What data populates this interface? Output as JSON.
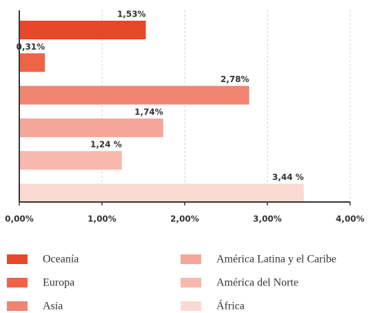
{
  "chart_data": {
    "type": "bar",
    "categories": [
      "Oceanía",
      "Europa",
      "Asia",
      "América Latina y el Caribe",
      "América del Norte",
      "África"
    ],
    "values": [
      1.53,
      0.31,
      2.78,
      1.74,
      1.24,
      3.44
    ],
    "value_labels": [
      "1,53%",
      "0,31%",
      "2,78%",
      "1,74%",
      "1,24 %",
      "3,44 %"
    ],
    "colors": [
      "#e8482a",
      "#ee6447",
      "#f08571",
      "#f4a698",
      "#f7b9ae",
      "#fbdad3"
    ],
    "xlim": [
      0,
      4
    ],
    "xticks": [
      {
        "value": 0,
        "label": "0,00%"
      },
      {
        "value": 1,
        "label": "1,00%"
      },
      {
        "value": 2,
        "label": "2,00%"
      },
      {
        "value": 3,
        "label": "3,00%"
      },
      {
        "value": 4,
        "label": "4,00%"
      }
    ],
    "grid": true
  }
}
